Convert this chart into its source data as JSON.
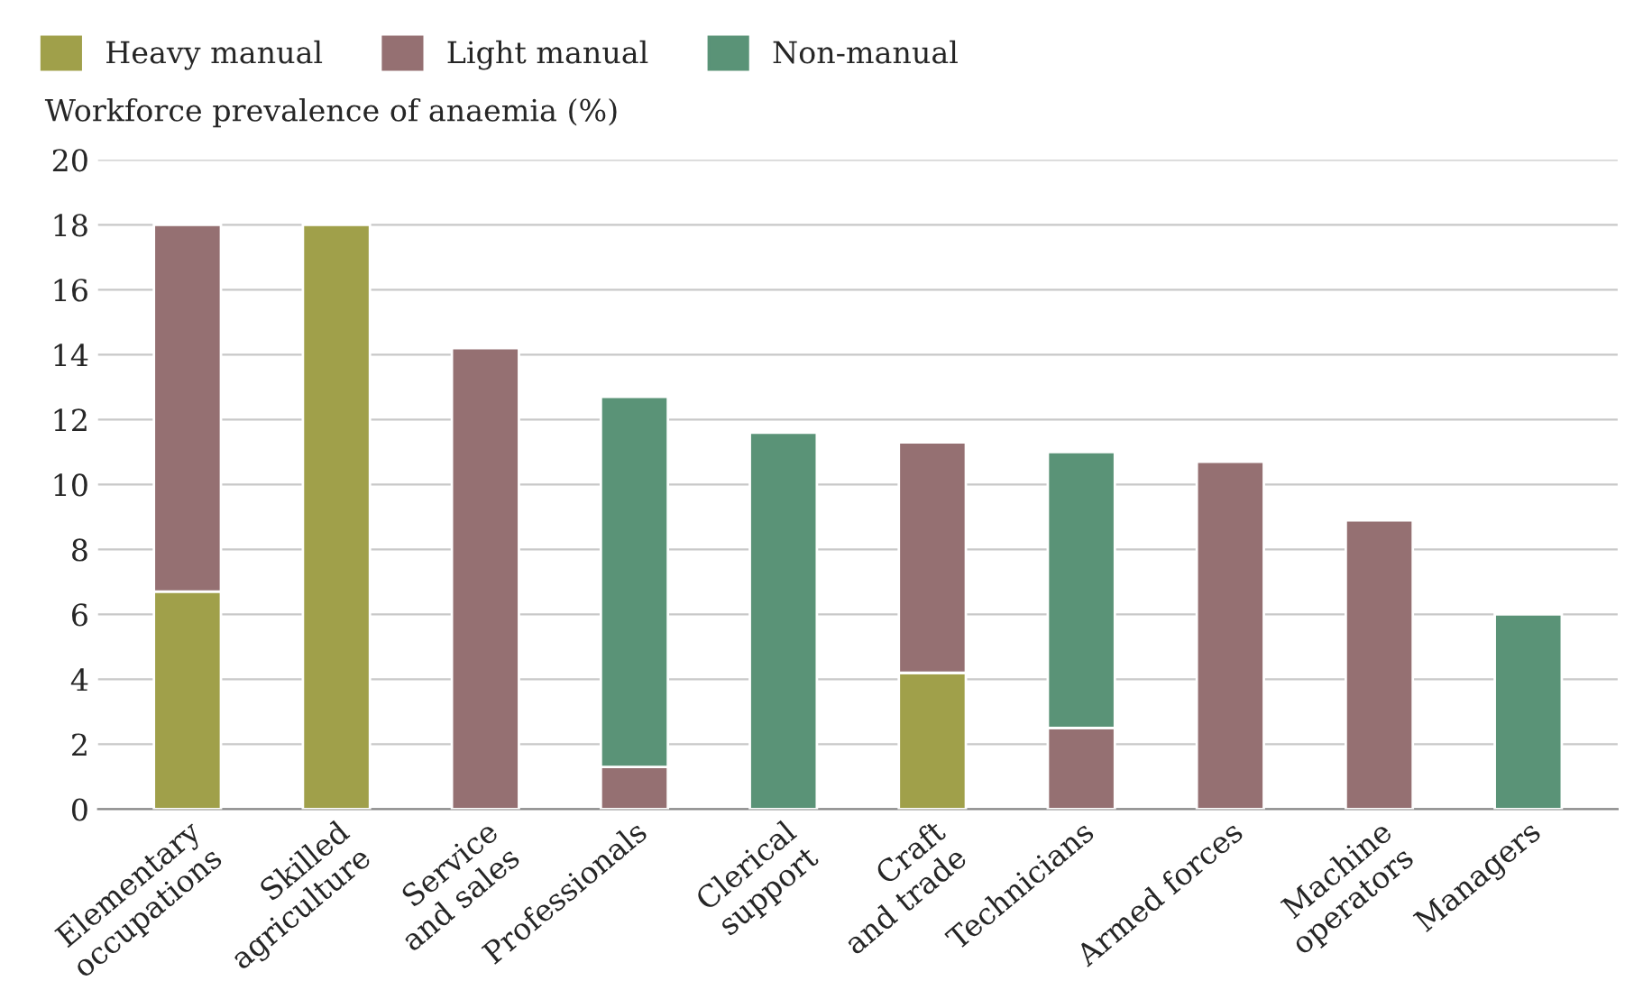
{
  "chart_data": {
    "type": "bar",
    "stacked": true,
    "ylabel": "Workforce prevalence of anaemia (%)",
    "categories": [
      "Elementary\noccupations",
      "Skilled\nagriculture",
      "Service\nand sales",
      "Professionals",
      "Clerical\nsupport",
      "Craft\nand trade",
      "Technicians",
      "Armed forces",
      "Machine\noperators",
      "Managers"
    ],
    "series": [
      {
        "name": "Heavy manual",
        "color": "#a0a04a",
        "values": [
          6.7,
          18.0,
          null,
          null,
          null,
          4.2,
          null,
          null,
          null,
          null
        ]
      },
      {
        "name": "Light manual",
        "color": "#957072",
        "values": [
          11.3,
          null,
          14.2,
          1.3,
          null,
          7.1,
          2.5,
          10.7,
          8.9,
          null
        ]
      },
      {
        "name": "Non-manual",
        "color": "#5a9377",
        "values": [
          null,
          null,
          null,
          11.4,
          11.6,
          null,
          8.5,
          null,
          null,
          6.0
        ]
      }
    ],
    "ylim": [
      0,
      20
    ],
    "yticks": [
      0,
      2,
      4,
      6,
      8,
      10,
      12,
      14,
      16,
      18,
      20
    ],
    "grid": "y",
    "legend": "top left"
  }
}
